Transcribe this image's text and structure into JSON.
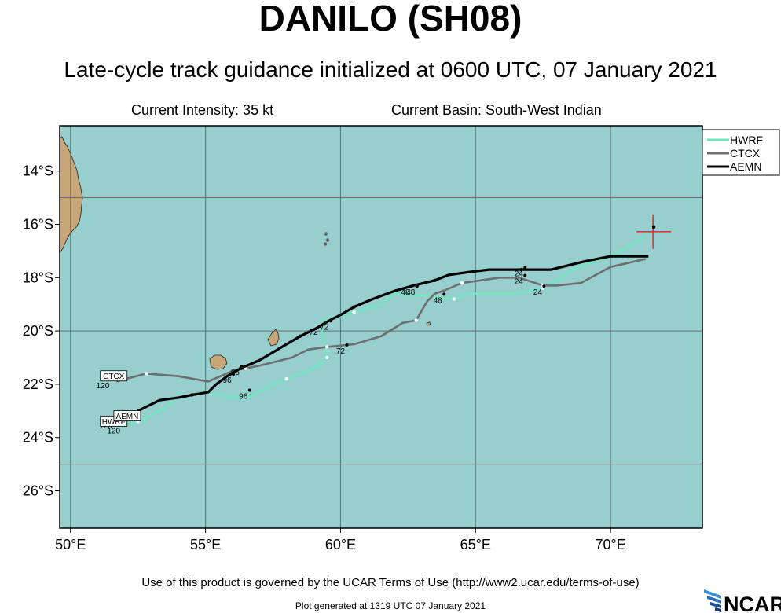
{
  "header": {
    "title": "DANILO (SH08)",
    "subtitle": "Late-cycle track guidance initialized at 0600 UTC, 07 January 2021",
    "intensity": "Current Intensity: 35 kt",
    "basin": "Current Basin: South-West Indian"
  },
  "footer": {
    "terms": "Use of this product is governed by the UCAR Terms of Use (http://www2.ucar.edu/terms-of-use)",
    "generated": "Plot generated at 1319 UTC   07 January 2021",
    "logo_text": "NCAR"
  },
  "colors": {
    "ocean": "#97cece",
    "land": "#c9a678",
    "HWRF": "#73e8c0",
    "CTCX": "#6e6e6e",
    "AEMN": "#000000",
    "current_position": "#e02020"
  },
  "chart_data": {
    "type": "line",
    "xlim": [
      49.6,
      73.4
    ],
    "ylim": [
      -27.4,
      -12.3
    ],
    "xticks": [
      50,
      55,
      60,
      65,
      70
    ],
    "xtick_labels": [
      "50°E",
      "55°E",
      "60°E",
      "65°E",
      "70°E"
    ],
    "yticks": [
      -14,
      -16,
      -18,
      -20,
      -22,
      -24,
      -26
    ],
    "ytick_labels": [
      "14°S",
      "16°S",
      "18°S",
      "20°S",
      "22°S",
      "24°S",
      "26°S"
    ],
    "grid": true,
    "legend_position": "top-right",
    "current_position": {
      "lon": 71.6,
      "lat": -16.1
    },
    "series": [
      {
        "name": "HWRF",
        "lon": [
          71.4,
          70.9,
          70.0,
          68.8,
          67.5,
          66.5,
          65.7,
          64.8,
          64.2,
          63.3,
          62.0,
          61.5,
          60.5,
          59.8,
          59.4,
          59.3,
          59.5,
          59.3,
          58.8,
          58.3,
          58.0,
          57.5,
          56.8,
          56.0,
          55.0,
          54.4,
          54.0,
          53.5,
          52.5,
          51.8
        ],
        "lat": [
          -16.3,
          -16.7,
          -17.2,
          -17.6,
          -18.4,
          -18.6,
          -18.6,
          -18.6,
          -18.8,
          -18.7,
          -18.6,
          -19.0,
          -19.3,
          -19.5,
          -19.6,
          -20.0,
          -21.0,
          -21.2,
          -21.5,
          -21.7,
          -21.8,
          -22.0,
          -22.4,
          -22.5,
          -22.3,
          -22.4,
          -22.5,
          -22.9,
          -23.4,
          -23.6
        ]
      },
      {
        "name": "CTCX",
        "lon": [
          71.3,
          70.0,
          68.9,
          68.0,
          67.5,
          66.6,
          65.9,
          65.2,
          64.5,
          63.8,
          63.5,
          63.2,
          62.8,
          62.3,
          61.5,
          60.5,
          59.5,
          58.8,
          58.2,
          57.0,
          56.5,
          56.0,
          55.1,
          54.0,
          52.8,
          51.7
        ],
        "lat": [
          -17.3,
          -17.6,
          -18.2,
          -18.3,
          -18.3,
          -18.0,
          -18.0,
          -18.1,
          -18.2,
          -18.5,
          -18.6,
          -18.9,
          -19.6,
          -19.7,
          -20.2,
          -20.5,
          -20.6,
          -20.7,
          -21.0,
          -21.3,
          -21.4,
          -21.5,
          -21.9,
          -21.7,
          -21.6,
          -21.9
        ]
      },
      {
        "name": "AEMN",
        "lon": [
          71.4,
          70.0,
          69.0,
          67.8,
          66.7,
          65.5,
          64.7,
          64.0,
          63.5,
          62.7,
          62.0,
          61.2,
          60.5,
          60.0,
          59.6,
          59.1,
          58.5,
          58.0,
          57.5,
          57.0,
          56.3,
          55.8,
          55.4,
          55.1,
          54.5,
          54.0,
          53.3,
          52.5,
          51.9
        ],
        "lat": [
          -17.2,
          -17.2,
          -17.4,
          -17.7,
          -17.7,
          -17.7,
          -17.8,
          -17.9,
          -18.1,
          -18.3,
          -18.5,
          -18.8,
          -19.1,
          -19.4,
          -19.6,
          -19.9,
          -20.2,
          -20.5,
          -20.8,
          -21.1,
          -21.4,
          -21.7,
          -22.0,
          -22.3,
          -22.4,
          -22.5,
          -22.6,
          -23.0,
          -23.5
        ]
      }
    ],
    "hour_labels": [
      {
        "text": "24",
        "lon": 66.6,
        "lat": -17.8
      },
      {
        "text": "24",
        "lon": 66.6,
        "lat": -18.1
      },
      {
        "text": "24",
        "lon": 67.3,
        "lat": -18.5
      },
      {
        "text": "48",
        "lon": 62.4,
        "lat": -18.5
      },
      {
        "text": "48",
        "lon": 62.6,
        "lat": -18.5
      },
      {
        "text": "48",
        "lon": 63.6,
        "lat": -18.8
      },
      {
        "text": "72",
        "lon": 59.4,
        "lat": -19.8
      },
      {
        "text": "72",
        "lon": 59.0,
        "lat": -20.0
      },
      {
        "text": "72",
        "lon": 60.0,
        "lat": -20.7
      },
      {
        "text": "96",
        "lon": 56.1,
        "lat": -21.5
      },
      {
        "text": "96",
        "lon": 55.8,
        "lat": -21.8
      },
      {
        "text": "96",
        "lon": 56.4,
        "lat": -22.4
      },
      {
        "text": "120",
        "lon": 51.2,
        "lat": -22.0
      },
      {
        "text": "120",
        "lon": 51.3,
        "lat": -23.5
      },
      {
        "text": "120",
        "lon": 51.6,
        "lat": -23.7
      }
    ],
    "end_labels": [
      {
        "text": "CTCX",
        "lon": 51.6,
        "lat": -21.7
      },
      {
        "text": "HWRF",
        "lon": 51.6,
        "lat": -23.4
      },
      {
        "text": "AEMN",
        "lon": 52.1,
        "lat": -23.2
      }
    ]
  }
}
